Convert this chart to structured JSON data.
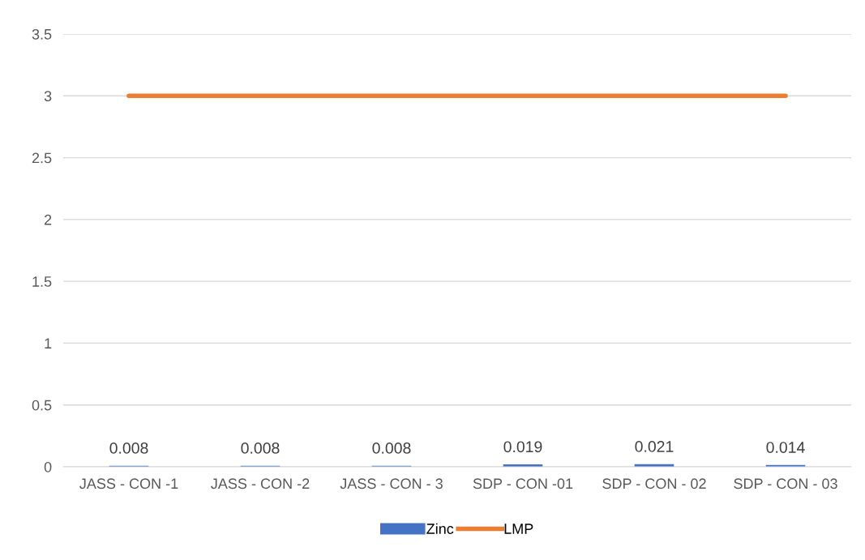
{
  "chart_data": {
    "type": "bar",
    "categories": [
      "JASS - CON -1",
      "JASS - CON -2",
      "JASS - CON - 3",
      "SDP - CON -01",
      "SDP - CON - 02",
      "SDP - CON - 03"
    ],
    "series": [
      {
        "name": "Zinc",
        "color": "#4472c4",
        "values": [
          0.008,
          0.008,
          0.008,
          0.019,
          0.021,
          0.014
        ],
        "value_labels": [
          "0.008",
          "0.008",
          "0.008",
          "0.019",
          "0.021",
          "0.014"
        ]
      },
      {
        "name": "LMP",
        "type": "line",
        "color": "#ed7d31",
        "values": [
          3,
          3,
          3,
          3,
          3,
          3
        ]
      }
    ],
    "ylim": [
      0,
      3.5
    ],
    "yticks": [
      0,
      0.5,
      1,
      1.5,
      2,
      2.5,
      3,
      3.5
    ],
    "grid": "y",
    "legend": "bottom",
    "marker": "none",
    "line_style": "solid"
  }
}
